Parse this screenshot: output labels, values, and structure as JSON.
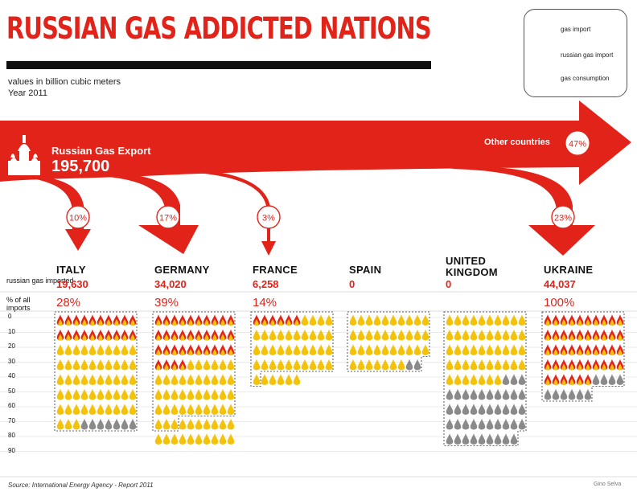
{
  "title": "RUSSIAN GAS ADDICTED NATIONS",
  "subtitle_units": "values in billion cubic meters",
  "subtitle_year": "Year 2011",
  "legend": {
    "gas_import": "gas import",
    "russian_gas_import": "russian gas import",
    "gas_consumption": "gas consumption"
  },
  "export": {
    "label": "Russian Gas Export",
    "value": "195,700"
  },
  "other": {
    "label": "Other countries",
    "pct": "47%"
  },
  "row_labels": {
    "russian_gas_imported": "russian gas imported",
    "pct_of_all_imports": "% of all imports"
  },
  "source": "Source: International Energy Agency - Report 2011",
  "credit": "Gino Selva",
  "colors": {
    "accent": "#e2231a",
    "import_yellow": "#f5c20a",
    "consumption_grey": "#8a8a8a"
  },
  "chart_data": {
    "type": "pictogram",
    "ytick_labels": [
      "0",
      "10",
      "20",
      "30",
      "40",
      "50",
      "60",
      "70",
      "80",
      "90"
    ],
    "ylim": [
      0,
      90
    ],
    "countries": [
      {
        "name": "ITALY",
        "russian_gas_imported": "19,630",
        "pct_of_all_imports": "28%",
        "export_share": "10%",
        "russian_rows": 2,
        "import_rows": 7.3,
        "consumption_rows": 8
      },
      {
        "name": "GERMANY",
        "russian_gas_imported": "34,020",
        "pct_of_all_imports": "39%",
        "export_share": "17%",
        "russian_rows": 3.4,
        "import_rows": 9,
        "consumption_rows": 7.3
      },
      {
        "name": "FRANCE",
        "russian_gas_imported": "6,258",
        "pct_of_all_imports": "14%",
        "export_share": "3%",
        "russian_rows": 0.6,
        "import_rows": 4.6,
        "consumption_rows": 4.1
      },
      {
        "name": "SPAIN",
        "russian_gas_imported": "0",
        "pct_of_all_imports": "",
        "export_share": "",
        "russian_rows": 0,
        "import_rows": 3.7,
        "consumption_rows": 3.9
      },
      {
        "name": "UNITED KINGDOM",
        "russian_gas_imported": "0",
        "pct_of_all_imports": "",
        "export_share": "",
        "russian_rows": 0,
        "import_rows": 4.7,
        "consumption_rows": 8.9
      },
      {
        "name": "UKRAINE",
        "russian_gas_imported": "44,037",
        "pct_of_all_imports": "100%",
        "export_share": "23%",
        "russian_rows": 4.6,
        "import_rows": 4.6,
        "consumption_rows": 5.6
      }
    ]
  }
}
